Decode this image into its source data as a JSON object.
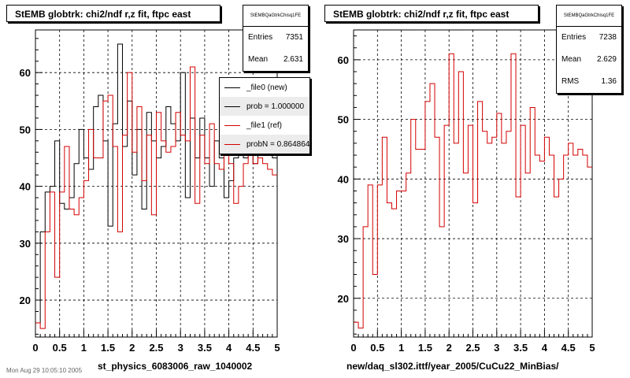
{
  "colors": {
    "new_series": "#000000",
    "ref_series": "#d40000",
    "grid": "#000000"
  },
  "left_panel": {
    "title": "StEMB globtrk: chi2/ndf r,z fit, ftpc east",
    "stats_name": "StEMBQaGtrkChisq1FE",
    "stats": [
      {
        "label": "Entries",
        "value": "7351"
      },
      {
        "label": "Mean",
        "value": "2.631"
      }
    ],
    "legend": [
      {
        "label": "_file0 (new)",
        "color": "#000000"
      },
      {
        "label": "prob = 1.000000",
        "color": "#000000"
      },
      {
        "label": "_file1 (ref)",
        "color": "#d40000"
      },
      {
        "label": "probN = 0.864864",
        "color": "#d40000"
      }
    ],
    "xlabel": "st_physics_6083006_raw_1040002"
  },
  "right_panel": {
    "title": "StEMB globtrk: chi2/ndf r,z fit, ftpc east",
    "stats_name": "StEMBQaGtrkChisq1FE",
    "stats": [
      {
        "label": "Entries",
        "value": "7238"
      },
      {
        "label": "Mean",
        "value": "2.629"
      },
      {
        "label": "RMS",
        "value": "1.36"
      }
    ],
    "xlabel": "new/daq_sl302.ittf/year_2005/CuCu22_MinBias/"
  },
  "footer_text": "Mon Aug 29 10:05:10 2005",
  "chart_data": [
    {
      "type": "histogram",
      "title": "StEMB globtrk: chi2/ndf r,z fit, ftpc east",
      "xlabel": "st_physics_6083006_raw_1040002",
      "ylabel": "",
      "xlim": [
        0,
        5
      ],
      "ylim": [
        13.5,
        67.5
      ],
      "x_ticks": [
        0,
        0.5,
        1,
        1.5,
        2,
        2.5,
        3,
        3.5,
        4,
        4.5,
        5
      ],
      "x_tick_labels": [
        "0",
        "0.5",
        "1",
        "1.5",
        "2",
        "2.5",
        "3",
        "3.5",
        "4",
        "4.5",
        "5"
      ],
      "y_ticks": [
        20,
        30,
        40,
        50,
        60
      ],
      "grid": true,
      "bin_edges_start": 0,
      "bin_width": 0.1,
      "series": [
        {
          "name": "_file0 (new)",
          "color": "#000000",
          "values": [
            16,
            32,
            39,
            40,
            48,
            37,
            36,
            38,
            44,
            50,
            45,
            43,
            54,
            56,
            48,
            33,
            51,
            65,
            47,
            55,
            42,
            50,
            36,
            53,
            48,
            45,
            47,
            54,
            51,
            48,
            60,
            38,
            52,
            45,
            52,
            45,
            40,
            48,
            45,
            38,
            41,
            45,
            47,
            45,
            46,
            44,
            52,
            48,
            46,
            45
          ]
        },
        {
          "name": "_file1 (ref)",
          "color": "#d40000",
          "values": [
            16,
            15,
            32,
            39,
            24,
            39,
            47,
            36,
            35,
            38,
            41,
            50,
            45,
            45,
            55,
            56,
            47,
            32,
            49,
            60,
            46,
            54,
            41,
            49,
            35,
            53,
            48,
            46,
            47,
            53,
            49,
            48,
            61,
            37,
            49,
            44,
            51,
            44,
            43,
            47,
            44,
            37,
            40,
            44,
            46,
            44,
            45,
            44,
            43,
            42
          ]
        }
      ]
    },
    {
      "type": "histogram",
      "title": "StEMB globtrk: chi2/ndf r,z fit, ftpc east",
      "xlabel": "new/daq_sl302.ittf/year_2005/CuCu22_MinBias/",
      "ylabel": "",
      "xlim": [
        0,
        5
      ],
      "ylim": [
        13.5,
        65
      ],
      "x_ticks": [
        0,
        0.5,
        1,
        1.5,
        2,
        2.5,
        3,
        3.5,
        4,
        4.5,
        5
      ],
      "x_tick_labels": [
        "0",
        "0.5",
        "1",
        "1.5",
        "2",
        "2.5",
        "3",
        "3.5",
        "4",
        "4.5",
        "5"
      ],
      "y_ticks": [
        20,
        30,
        40,
        50,
        60
      ],
      "grid": true,
      "bin_edges_start": 0,
      "bin_width": 0.1,
      "series": [
        {
          "name": "",
          "color": "#d40000",
          "values": [
            16,
            15,
            32,
            39,
            24,
            39,
            47,
            36,
            35,
            38,
            38,
            41,
            50,
            45,
            45,
            53,
            56,
            47,
            32,
            49,
            61,
            46,
            58,
            41,
            49,
            36,
            53,
            48,
            46,
            47,
            51,
            46,
            48,
            61,
            37,
            49,
            41,
            52,
            44,
            43,
            47,
            44,
            37,
            40,
            44,
            46,
            44,
            45,
            44,
            42
          ]
        }
      ]
    }
  ]
}
